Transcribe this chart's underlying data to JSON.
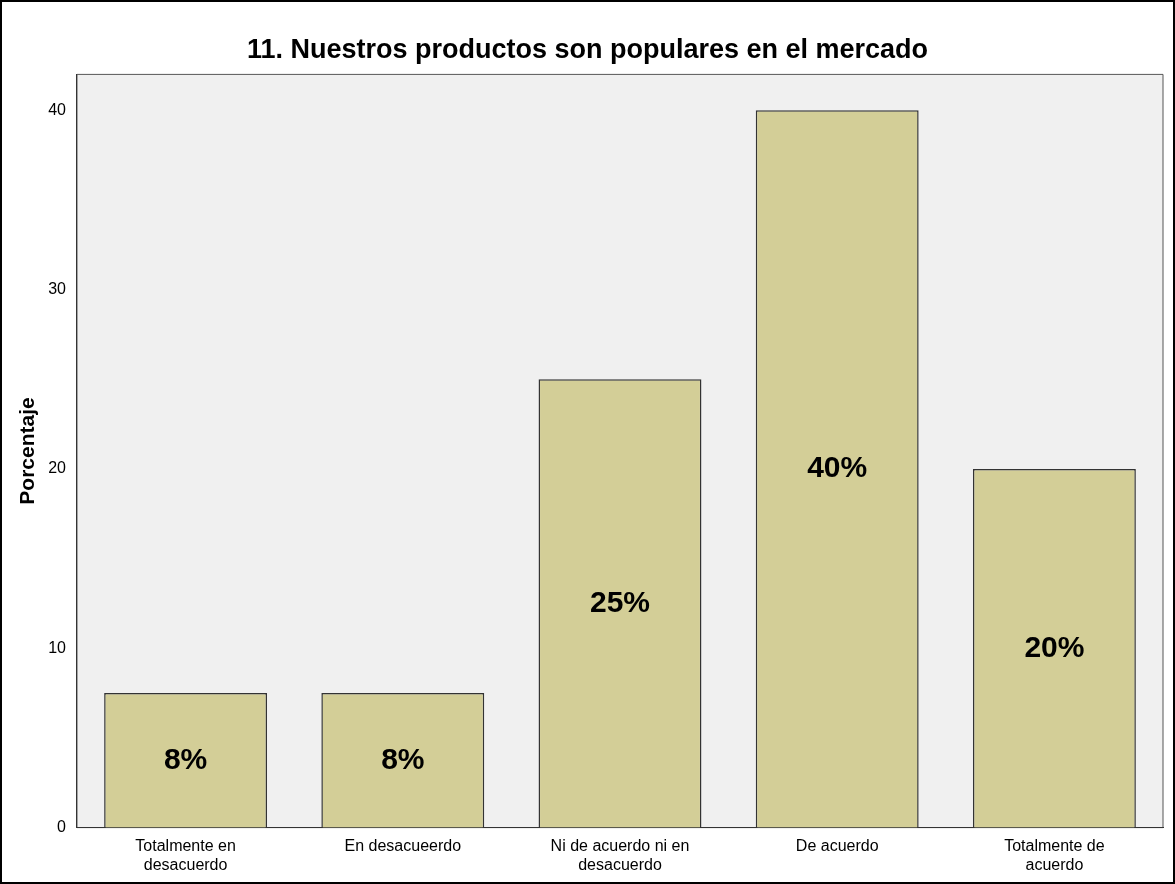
{
  "chart_data": {
    "type": "bar",
    "title": "11. Nuestros productos son populares en el mercado",
    "ylabel": "Porcentaje",
    "categories": [
      "Totalmente en desacuerdo",
      "En desacueerdo",
      "Ni de acuerdo ni en desacuerdo",
      "De acuerdo",
      "Totalmente de acuerdo"
    ],
    "values": [
      7.5,
      7.5,
      25,
      40,
      20
    ],
    "value_labels": [
      "8%",
      "8%",
      "25%",
      "40%",
      "20%"
    ],
    "color": "#d3ce97",
    "ylim": [
      0,
      42
    ],
    "yticks": [
      0,
      10,
      20,
      30,
      40
    ],
    "grid": false,
    "legend": false
  }
}
